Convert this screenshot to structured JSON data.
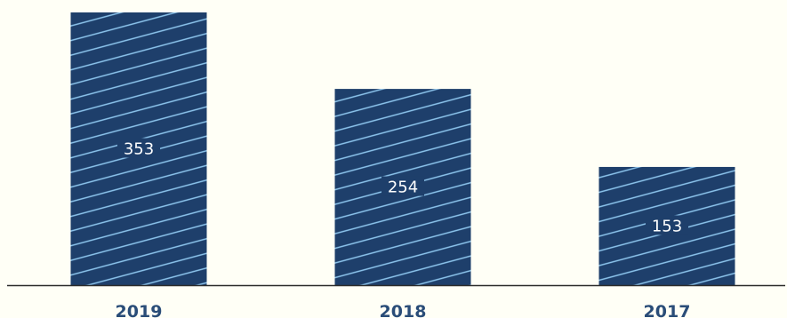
{
  "chart_data": {
    "type": "bar",
    "categories": [
      "2019",
      "2018",
      "2017"
    ],
    "values": [
      353,
      254,
      153
    ],
    "data_labels": [
      "353",
      "254",
      "153"
    ],
    "title": "",
    "xlabel": "",
    "ylabel": "",
    "ylim": [
      0,
      353
    ],
    "grid": false,
    "legend": "none",
    "colors": {
      "bar": "#1e3f6b",
      "hatch": "#8fc8f0",
      "axis": "#2b2b2b",
      "tick_label": "#2a4d78",
      "data_label": "#ffffff",
      "background": "#fffff6"
    }
  }
}
